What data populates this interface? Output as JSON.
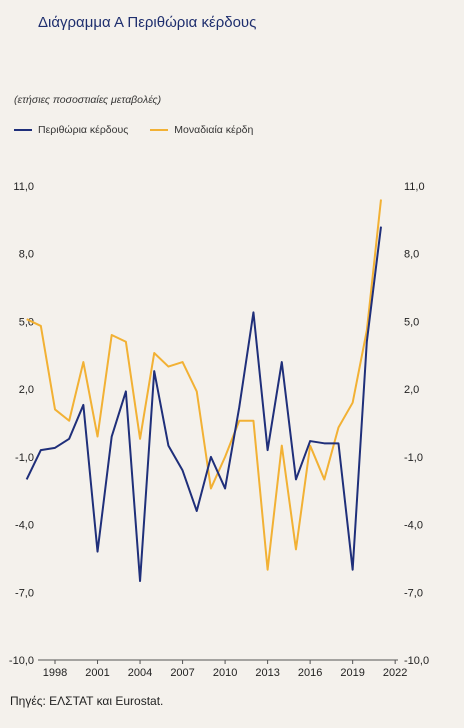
{
  "title": "Διάγραμμα Α Περιθώρια κέρδους",
  "subtitle": "(ετήσιες ποσοστιαίες μεταβολές)",
  "source": "Πηγές: ΕΛΣΤΑΤ και Eurostat.",
  "chart_data": {
    "type": "line",
    "x": [
      1996,
      1997,
      1998,
      1999,
      2000,
      2001,
      2002,
      2003,
      2004,
      2005,
      2006,
      2007,
      2008,
      2009,
      2010,
      2011,
      2012,
      2013,
      2014,
      2015,
      2016,
      2017,
      2018,
      2019,
      2020,
      2021,
      2022
    ],
    "x_tick_labels": [
      "1998",
      "2001",
      "2004",
      "2007",
      "2010",
      "2013",
      "2016",
      "2019",
      "2022"
    ],
    "x_tick_values": [
      1998,
      2001,
      2004,
      2007,
      2010,
      2013,
      2016,
      2019,
      2022
    ],
    "y_tick_values": [
      11,
      8,
      5,
      2,
      -1,
      -4,
      -7,
      -10
    ],
    "y_tick_labels": [
      "11,0",
      "8,0",
      "5,0",
      "2,0",
      "-1,0",
      "-4,0",
      "-7,0",
      "-10,0"
    ],
    "ylim": [
      -10,
      11
    ],
    "xlim": [
      1996.8,
      2022.2
    ],
    "grid": false,
    "legend_position": "top-left",
    "series": [
      {
        "name": "Περιθώρια κέρδους",
        "color": "#1f2f7a",
        "values": [
          -2.0,
          -0.7,
          -0.6,
          -0.2,
          1.3,
          -5.2,
          -0.1,
          1.9,
          -6.5,
          2.8,
          -0.5,
          -1.6,
          -3.4,
          -1.0,
          -2.4,
          1.2,
          5.4,
          -0.7,
          3.2,
          -2.0,
          -0.3,
          -0.4,
          -0.4,
          -6.0,
          4.1,
          9.2,
          null
        ]
      },
      {
        "name": "Μοναδιαία κέρδη",
        "color": "#f2b134",
        "values": [
          5.1,
          4.8,
          1.1,
          0.6,
          3.2,
          -0.1,
          4.4,
          4.1,
          -0.2,
          3.6,
          3.0,
          3.2,
          1.9,
          -2.4,
          -1.0,
          0.6,
          0.6,
          -6.0,
          -0.5,
          -5.1,
          -0.5,
          -2.0,
          0.3,
          1.4,
          4.6,
          10.4,
          null
        ]
      }
    ]
  }
}
